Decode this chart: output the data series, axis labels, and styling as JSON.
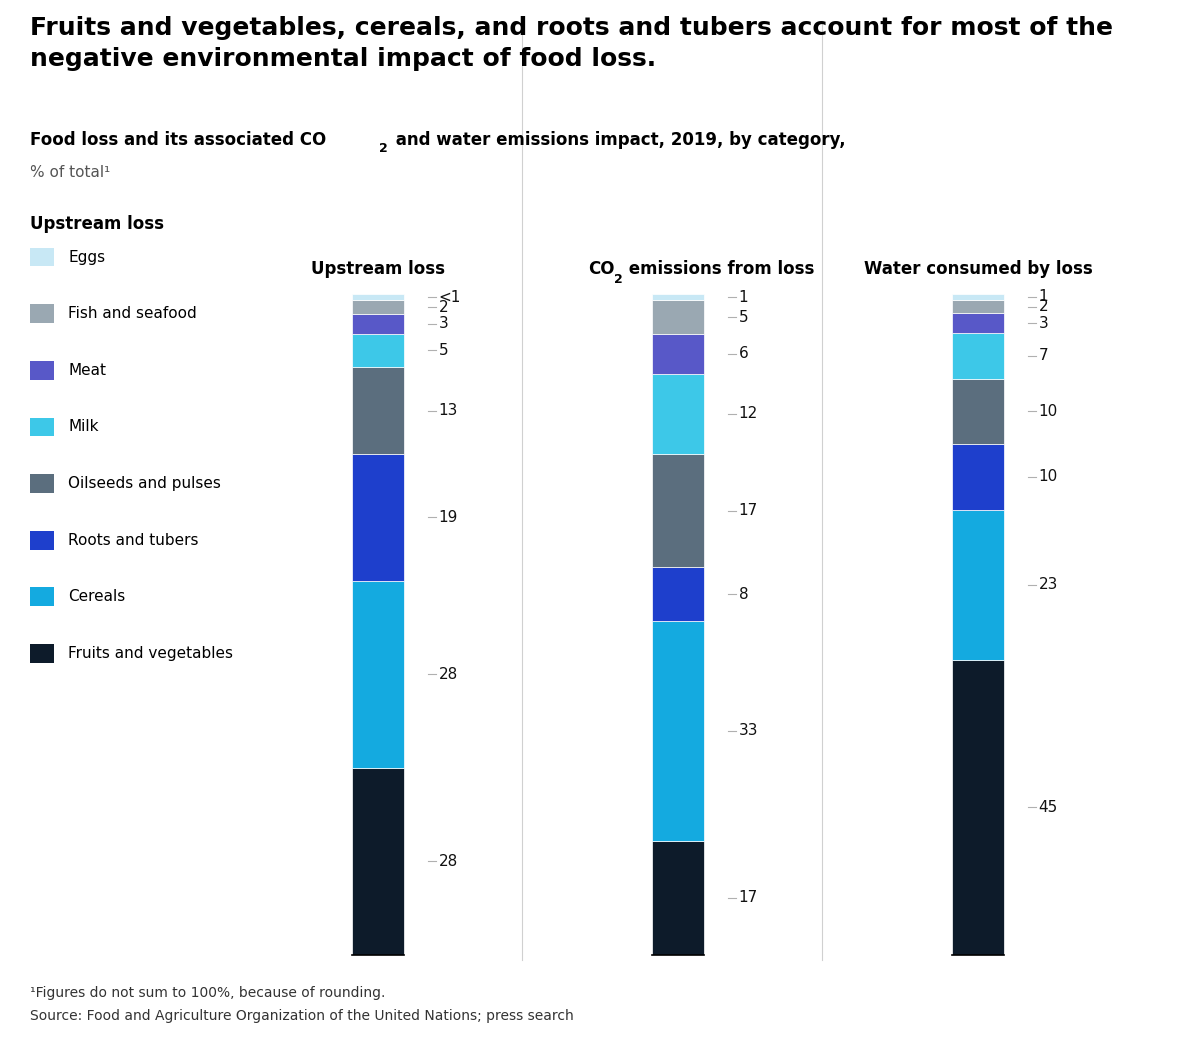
{
  "title_line1": "Fruits and vegetables, cereals, and roots and tubers account for most of the",
  "title_line2": "negative environmental impact of food loss.",
  "footnote1": "¹Figures do not sum to 100%, because of rounding.",
  "footnote2": "Source: Food and Agriculture Organization of the United Nations; press search",
  "categories": [
    "Fruits and vegetables",
    "Cereals",
    "Roots and tubers",
    "Oilseeds and pulses",
    "Milk",
    "Meat",
    "Fish and seafood",
    "Eggs"
  ],
  "legend_order": [
    "Eggs",
    "Fish and seafood",
    "Meat",
    "Milk",
    "Oilseeds and pulses",
    "Roots and tubers",
    "Cereals",
    "Fruits and vegetables"
  ],
  "colors": {
    "Fruits and vegetables": "#0d1b2a",
    "Cereals": "#14aae0",
    "Roots and tubers": "#1e3fcc",
    "Oilseeds and pulses": "#5b6e7e",
    "Milk": "#3dc8e8",
    "Meat": "#5858c8",
    "Fish and seafood": "#9aa8b2",
    "Eggs": "#c8e8f5"
  },
  "upstream_loss": [
    28,
    28,
    19,
    13,
    5,
    3,
    2,
    1
  ],
  "upstream_labels": [
    "28",
    "28",
    "19",
    "13",
    "5",
    "3",
    "2",
    "<1"
  ],
  "co2_emissions": [
    17,
    33,
    8,
    17,
    12,
    6,
    5,
    1
  ],
  "co2_labels": [
    "17",
    "33",
    "8",
    "17",
    "12",
    "6",
    "5",
    "1"
  ],
  "water_consumed": [
    45,
    23,
    10,
    10,
    7,
    3,
    2,
    1
  ],
  "water_labels": [
    "45",
    "23",
    "10",
    "10",
    "7",
    "3",
    "2",
    "1"
  ],
  "bar_col_titles": [
    "Upstream loss",
    "CO2 emissions from loss",
    "Water consumed by loss"
  ],
  "background_color": "#ffffff"
}
